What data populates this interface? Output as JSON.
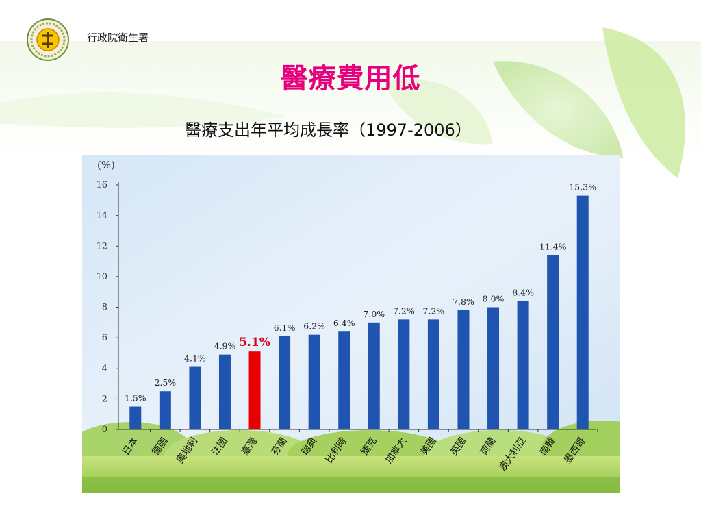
{
  "header": {
    "org_name": "行政院衛生署",
    "title": "醫療費用低",
    "subtitle": "醫療支出年平均成長率（1997-2006）"
  },
  "colors": {
    "title": "#e6007e",
    "bar": "#1f55b0",
    "highlight_bar": "#e60000",
    "highlight_label": "#d4001c"
  },
  "chart_data": {
    "type": "bar",
    "ylabel": "(%)",
    "ylim": [
      0,
      16
    ],
    "yticks": [
      "0",
      "2",
      "4",
      "6",
      "8",
      "10",
      "12",
      "14",
      "16"
    ],
    "categories": [
      "日本",
      "德國",
      "奧地利",
      "法國",
      "臺灣",
      "芬蘭",
      "瑞典",
      "比利時",
      "捷克",
      "加拿大",
      "美國",
      "英國",
      "荷蘭",
      "澳大利亞",
      "南韓",
      "墨西哥"
    ],
    "values": [
      1.5,
      2.5,
      4.1,
      4.9,
      5.1,
      6.1,
      6.2,
      6.4,
      7.0,
      7.2,
      7.2,
      7.8,
      8.0,
      8.4,
      11.4,
      15.3
    ],
    "value_labels": [
      "1.5%",
      "2.5%",
      "4.1%",
      "4.9%",
      "5.1%",
      "6.1%",
      "6.2%",
      "6.4%",
      "7.0%",
      "7.2%",
      "7.2%",
      "7.8%",
      "8.0%",
      "8.4%",
      "11.4%",
      "15.3%"
    ],
    "highlight_index": 4,
    "grid": false,
    "legend": "none"
  }
}
